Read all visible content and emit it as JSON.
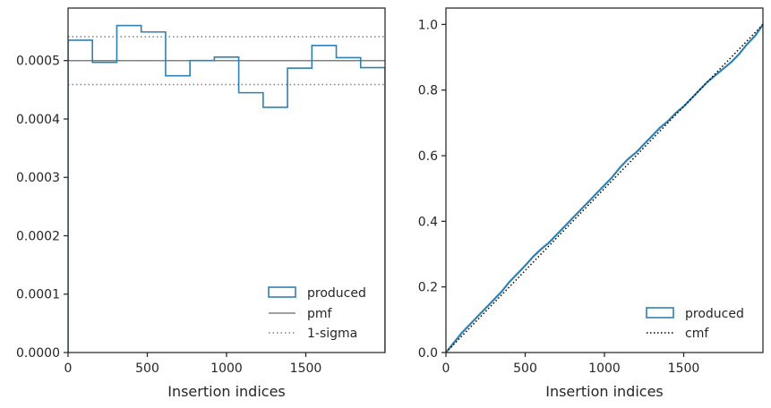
{
  "chart_data": [
    {
      "type": "histogram",
      "xlabel": "Insertion indices",
      "ylabel": "",
      "xlim": [
        0,
        2000
      ],
      "ylim": [
        0,
        0.00059
      ],
      "xticks": [
        0,
        500,
        1000,
        1500
      ],
      "xtick_labels": [
        "0",
        "500",
        "1000",
        "1500"
      ],
      "yticks": [
        0,
        0.0001,
        0.0002,
        0.0003,
        0.0004,
        0.0005
      ],
      "ytick_labels": [
        "0.0000",
        "0.0001",
        "0.0002",
        "0.0003",
        "0.0004",
        "0.0005"
      ],
      "bin_edges": [
        0,
        153.8,
        307.7,
        461.5,
        615.4,
        769.2,
        923.1,
        1076.9,
        1230.8,
        1384.6,
        1538.5,
        1692.3,
        1846.2,
        2000
      ],
      "series": [
        {
          "name": "produced",
          "style": "step",
          "color": "#2f80b3",
          "values": [
            0.000535,
            0.000497,
            0.00056,
            0.000549,
            0.000474,
            0.0005,
            0.000506,
            0.000445,
            0.00042,
            0.000487,
            0.000526,
            0.000505,
            0.000488
          ]
        },
        {
          "name": "pmf",
          "style": "hline",
          "color": "#808080",
          "y": 0.0005
        },
        {
          "name": "1-sigma",
          "style": "hline-dotted",
          "color": "#808080",
          "y": [
            0.000541,
            0.000459
          ]
        }
      ],
      "legend": {
        "position": "lower-right",
        "entries": [
          "produced",
          "pmf",
          "1-sigma"
        ]
      }
    },
    {
      "type": "line",
      "xlabel": "Insertion indices",
      "ylabel": "",
      "xlim": [
        0,
        2000
      ],
      "ylim": [
        0,
        1.05
      ],
      "xticks": [
        0,
        500,
        1000,
        1500
      ],
      "xtick_labels": [
        "0",
        "500",
        "1000",
        "1500"
      ],
      "yticks": [
        0,
        0.2,
        0.4,
        0.6,
        0.8,
        1.0
      ],
      "ytick_labels": [
        "0.0",
        "0.2",
        "0.4",
        "0.6",
        "0.8",
        "1.0"
      ],
      "series": [
        {
          "name": "produced",
          "color": "#2f80b3",
          "x": [
            0,
            50,
            100,
            150,
            200,
            250,
            300,
            350,
            400,
            450,
            500,
            550,
            600,
            650,
            700,
            750,
            800,
            850,
            900,
            950,
            1000,
            1050,
            1100,
            1150,
            1200,
            1250,
            1300,
            1350,
            1400,
            1450,
            1500,
            1550,
            1600,
            1650,
            1700,
            1750,
            1800,
            1850,
            1900,
            1950,
            2000
          ],
          "y": [
            0,
            0.03,
            0.06,
            0.085,
            0.11,
            0.135,
            0.16,
            0.185,
            0.215,
            0.24,
            0.265,
            0.292,
            0.315,
            0.335,
            0.36,
            0.385,
            0.41,
            0.435,
            0.46,
            0.485,
            0.51,
            0.535,
            0.565,
            0.59,
            0.61,
            0.635,
            0.66,
            0.685,
            0.705,
            0.73,
            0.75,
            0.775,
            0.8,
            0.825,
            0.845,
            0.865,
            0.885,
            0.91,
            0.94,
            0.965,
            1.0
          ]
        },
        {
          "name": "cmf",
          "color": "#000000",
          "style": "dotted",
          "x": [
            0,
            2000
          ],
          "y": [
            0,
            1.0
          ]
        }
      ],
      "legend": {
        "position": "lower-right",
        "entries": [
          "produced",
          "cmf"
        ]
      }
    }
  ]
}
